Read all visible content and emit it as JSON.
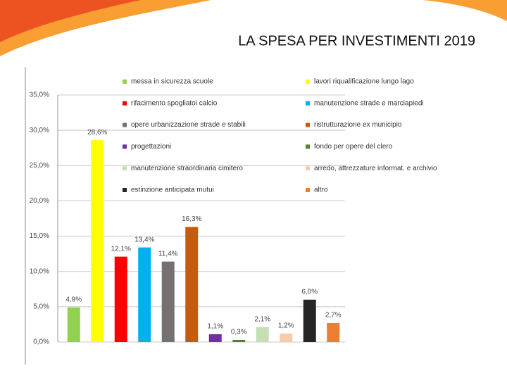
{
  "chart_data": {
    "type": "bar",
    "title": "LA SPESA PER INVESTIMENTI 2019",
    "categories": [
      "messa in sicurezza scuole",
      "lavori riqualificazione lungo lago",
      "rifacimento spogliatoi calcio",
      "manutenzione strade e marciapiedi",
      "opere urbanizzazione strade e stabili",
      "ristrutturazione ex municipio",
      "progettazioni",
      "fondo per opere del clero",
      "manutenzione straordinaria cimitero",
      "arredo, attrezzature informat. e archivio",
      "estinzione anticipata mutui",
      "altro"
    ],
    "values": [
      4.9,
      28.6,
      12.1,
      13.4,
      11.4,
      16.3,
      1.1,
      0.3,
      2.1,
      1.2,
      6.0,
      2.7
    ],
    "value_labels": [
      "4,9%",
      "28,6%",
      "12,1%",
      "13,4%",
      "11,4%",
      "16,3%",
      "1,1%",
      "0,3%",
      "2,1%",
      "1,2%",
      "6,0%",
      "2,7%"
    ],
    "colors": [
      "#92d050",
      "#ffff00",
      "#ff0000",
      "#00b0f0",
      "#767171",
      "#c55a11",
      "#7030a0",
      "#548235",
      "#c5e0b4",
      "#f8cbad",
      "#262626",
      "#ed7d31"
    ],
    "ylim": [
      0,
      35
    ],
    "yticks": [
      {
        "value": 0,
        "label": "0,0%"
      },
      {
        "value": 5,
        "label": "5,0%"
      },
      {
        "value": 10,
        "label": "10,0%"
      },
      {
        "value": 15,
        "label": "15,0%"
      },
      {
        "value": 20,
        "label": "20,0%"
      },
      {
        "value": 25,
        "label": "25,0%"
      },
      {
        "value": 30,
        "label": "30,0%"
      },
      {
        "value": 35,
        "label": "35,0%"
      }
    ],
    "grid": true
  }
}
